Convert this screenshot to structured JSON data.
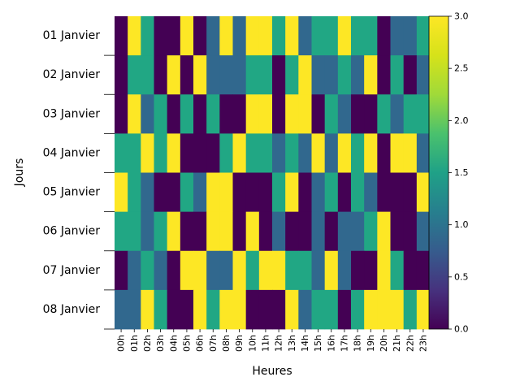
{
  "chart_data": {
    "type": "heatmap",
    "title": "",
    "xlabel": "Heures",
    "ylabel": "Jours",
    "x_categories": [
      "00h",
      "01h",
      "02h",
      "03h",
      "04h",
      "05h",
      "06h",
      "07h",
      "08h",
      "09h",
      "10h",
      "11h",
      "12h",
      "13h",
      "14h",
      "15h",
      "16h",
      "17h",
      "18h",
      "19h",
      "20h",
      "21h",
      "22h",
      "23h"
    ],
    "y_categories": [
      "01 Janvier",
      "02 Janvier",
      "03 Janvier",
      "04 Janvier",
      "05 Janvier",
      "06 Janvier",
      "07 Janvier",
      "08 Janvier"
    ],
    "values": [
      [
        0,
        3,
        2,
        0,
        0,
        3,
        0,
        1,
        3,
        1,
        3,
        3,
        2,
        3,
        1,
        2,
        2,
        3,
        2,
        2,
        0,
        1,
        1,
        2
      ],
      [
        0,
        2,
        2,
        0,
        3,
        0,
        3,
        1,
        1,
        1,
        2,
        2,
        0,
        2,
        3,
        1,
        1,
        2,
        1,
        3,
        0,
        2,
        0,
        1
      ],
      [
        0,
        3,
        1,
        2,
        0,
        2,
        0,
        2,
        0,
        0,
        3,
        3,
        0,
        3,
        3,
        0,
        2,
        1,
        0,
        0,
        2,
        1,
        2,
        2
      ],
      [
        2,
        2,
        3,
        2,
        3,
        0,
        0,
        0,
        2,
        3,
        2,
        2,
        1,
        2,
        1,
        3,
        1,
        3,
        2,
        3,
        0,
        3,
        3,
        1
      ],
      [
        3,
        2,
        1,
        0,
        0,
        2,
        1,
        3,
        3,
        0,
        0,
        0,
        2,
        3,
        0,
        1,
        2,
        0,
        2,
        1,
        0,
        0,
        0,
        3
      ],
      [
        2,
        2,
        1,
        2,
        3,
        0,
        0,
        3,
        3,
        0,
        3,
        0,
        1,
        0,
        0,
        1,
        0,
        1,
        1,
        2,
        3,
        0,
        0,
        1
      ],
      [
        0,
        1,
        2,
        1,
        0,
        3,
        3,
        1,
        1,
        3,
        2,
        3,
        3,
        2,
        2,
        1,
        3,
        1,
        0,
        0,
        3,
        2,
        0,
        0
      ],
      [
        1,
        1,
        3,
        2,
        0,
        0,
        3,
        2,
        3,
        3,
        0,
        0,
        0,
        3,
        1,
        2,
        2,
        0,
        2,
        3,
        3,
        3,
        2,
        3
      ]
    ],
    "vmin": 0,
    "vmax": 3,
    "colormap": "viridis",
    "colorbar_ticks": [
      "0.0",
      "0.5",
      "1.0",
      "1.5",
      "2.0",
      "2.5",
      "3.0"
    ],
    "grid": false
  }
}
